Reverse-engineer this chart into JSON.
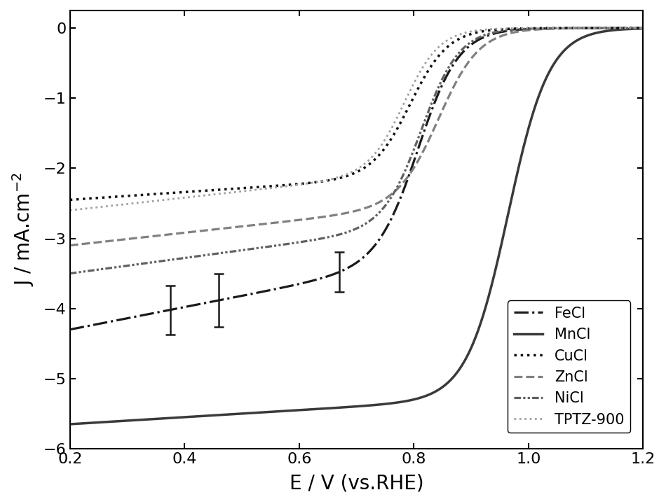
{
  "xlabel": "E / V (vs.RHE)",
  "xlim": [
    0.2,
    1.2
  ],
  "ylim": [
    -6,
    0.25
  ],
  "yticks": [
    0,
    -1,
    -2,
    -3,
    -4,
    -5,
    -6
  ],
  "xticks": [
    0.2,
    0.4,
    0.6,
    0.8,
    1.0,
    1.2
  ],
  "legend_labels": [
    "FeCl",
    "MnCl",
    "CuCl",
    "ZnCl",
    "NiCl",
    "TPTZ-900"
  ],
  "curves": {
    "FeCl": {
      "color": "#1a1a1a",
      "linestyle": "dashdot",
      "linewidth": 2.3,
      "J_low": -4.3,
      "J_high": 0.0,
      "E_onset": 0.88,
      "E_half": 0.81,
      "slope_kinetic": 1.6,
      "slope_sig": 28
    },
    "MnCl": {
      "color": "#3a3a3a",
      "linestyle": "solid",
      "linewidth": 2.5,
      "J_low": -5.65,
      "J_high": 0.0,
      "E_onset": 1.1,
      "E_half": 0.965,
      "slope_kinetic": 0.5,
      "slope_sig": 28
    },
    "CuCl": {
      "color": "#111111",
      "linestyle": "dotted",
      "linewidth": 2.5,
      "J_low": -2.45,
      "J_high": 0.0,
      "E_onset": 0.87,
      "E_half": 0.795,
      "slope_kinetic": 0.55,
      "slope_sig": 30
    },
    "ZnCl": {
      "color": "#808080",
      "linestyle": "dashed",
      "linewidth": 2.3,
      "J_low": -3.1,
      "J_high": 0.0,
      "E_onset": 0.93,
      "E_half": 0.845,
      "slope_kinetic": 0.9,
      "slope_sig": 28
    },
    "NiCl": {
      "color": "#606060",
      "linestyle": "dashdotdotted",
      "linewidth": 2.3,
      "J_low": -3.5,
      "J_high": 0.0,
      "E_onset": 0.88,
      "E_half": 0.815,
      "slope_kinetic": 1.1,
      "slope_sig": 30
    },
    "TPTZ-900": {
      "color": "#a0a0a0",
      "linestyle": "dotted",
      "linewidth": 2.0,
      "J_low": -2.6,
      "J_high": 0.0,
      "E_onset": 0.85,
      "E_half": 0.785,
      "slope_kinetic": 0.9,
      "slope_sig": 32
    }
  },
  "error_bars": {
    "curve": "FeCl",
    "x_positions": [
      0.375,
      0.46,
      0.67
    ],
    "yerr": [
      0.35,
      0.38,
      0.28
    ],
    "color": "#1a1a1a",
    "elinewidth": 1.8,
    "capsize": 5
  },
  "figsize": [
    9.5,
    7.2
  ],
  "dpi": 100
}
